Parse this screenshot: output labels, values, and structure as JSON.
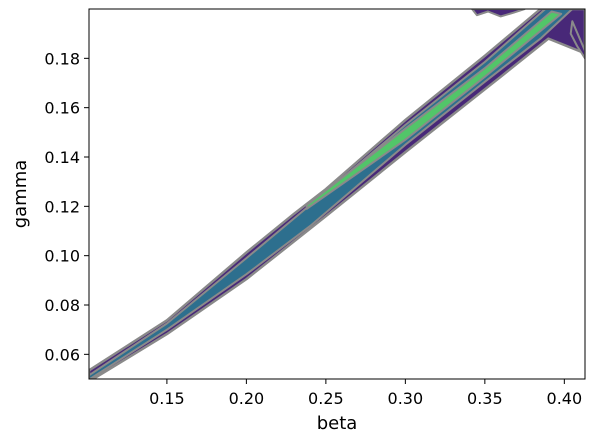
{
  "chart_data": {
    "type": "contour",
    "title": "",
    "xlabel": "beta",
    "ylabel": "gamma",
    "xlim": [
      0.101,
      0.413
    ],
    "ylim": [
      0.05,
      0.2
    ],
    "x_ticks": [
      0.15,
      0.2,
      0.25,
      0.3,
      0.35,
      0.4
    ],
    "x_tick_labels": [
      "0.15",
      "0.20",
      "0.25",
      "0.30",
      "0.35",
      "0.40"
    ],
    "y_ticks": [
      0.06,
      0.08,
      0.1,
      0.12,
      0.14,
      0.16,
      0.18
    ],
    "y_tick_labels": [
      "0.06",
      "0.08",
      "0.10",
      "0.12",
      "0.14",
      "0.16",
      "0.18"
    ],
    "grid": false,
    "colormap": "viridis",
    "levels": [
      {
        "name": "outer",
        "color": "#482878",
        "points": [
          [
            0.101,
            0.0535
          ],
          [
            0.15,
            0.0738
          ],
          [
            0.2,
            0.1013
          ],
          [
            0.23,
            0.117
          ],
          [
            0.25,
            0.127
          ],
          [
            0.3,
            0.155
          ],
          [
            0.35,
            0.181
          ],
          [
            0.385,
            0.2
          ],
          [
            0.413,
            0.2
          ],
          [
            0.413,
            0.182
          ],
          [
            0.39,
            0.188
          ],
          [
            0.36,
            0.1725
          ],
          [
            0.3,
            0.142
          ],
          [
            0.25,
            0.116
          ],
          [
            0.2,
            0.0905
          ],
          [
            0.15,
            0.0682
          ],
          [
            0.101,
            0.049
          ]
        ]
      },
      {
        "name": "outer-patch-top-right",
        "color": "#482878",
        "points": [
          [
            0.342,
            0.2
          ],
          [
            0.345,
            0.1975
          ],
          [
            0.352,
            0.199
          ],
          [
            0.36,
            0.197
          ],
          [
            0.368,
            0.1985
          ],
          [
            0.375,
            0.2
          ]
        ]
      },
      {
        "name": "outer-patch-right",
        "color": "#482878",
        "points": [
          [
            0.405,
            0.195
          ],
          [
            0.413,
            0.183
          ],
          [
            0.413,
            0.18
          ],
          [
            0.408,
            0.185
          ],
          [
            0.404,
            0.19
          ]
        ]
      },
      {
        "name": "middle",
        "color": "#2d6f8e",
        "points": [
          [
            0.101,
            0.0515
          ],
          [
            0.15,
            0.0725
          ],
          [
            0.2,
            0.099
          ],
          [
            0.24,
            0.1205
          ],
          [
            0.3,
            0.153
          ],
          [
            0.35,
            0.1785
          ],
          [
            0.388,
            0.2
          ],
          [
            0.405,
            0.2
          ],
          [
            0.385,
            0.188
          ],
          [
            0.35,
            0.1705
          ],
          [
            0.3,
            0.145
          ],
          [
            0.24,
            0.112
          ],
          [
            0.2,
            0.0925
          ],
          [
            0.15,
            0.07
          ],
          [
            0.101,
            0.0498
          ]
        ]
      },
      {
        "name": "inner",
        "color": "#52c569",
        "points": [
          [
            0.238,
            0.1205
          ],
          [
            0.3,
            0.1515
          ],
          [
            0.35,
            0.176
          ],
          [
            0.392,
            0.199
          ],
          [
            0.398,
            0.198
          ],
          [
            0.35,
            0.1725
          ],
          [
            0.3,
            0.147
          ],
          [
            0.238,
            0.119
          ]
        ]
      }
    ],
    "outline_color": "#8a8a8a"
  }
}
